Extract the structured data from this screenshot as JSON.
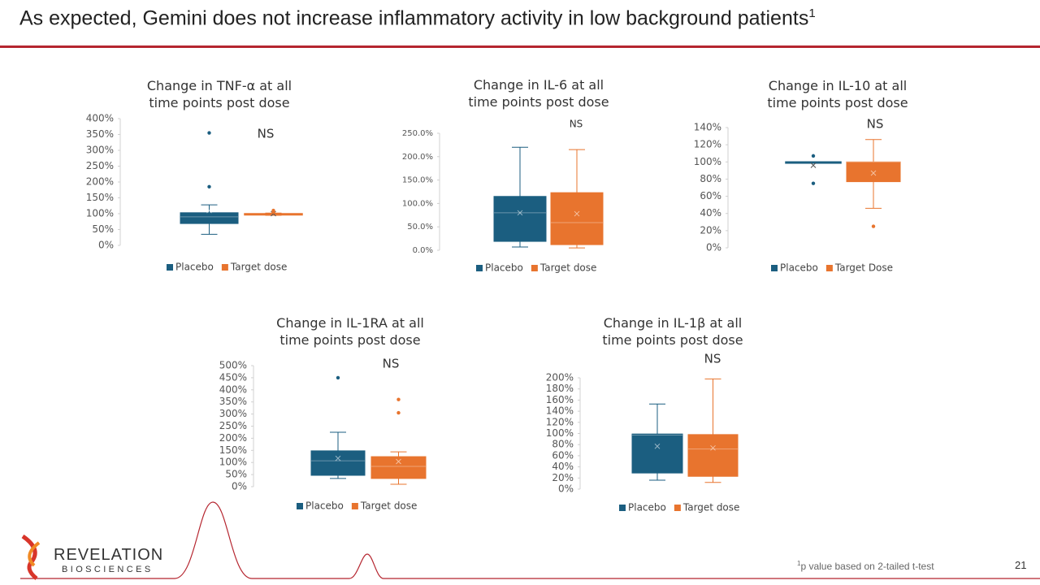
{
  "slide": {
    "title": "As expected, Gemini does not increase inflammatory activity in low background patients",
    "title_sup": "1",
    "footnote_sup": "1",
    "footnote": "p value based on 2-tailed t-test",
    "page_number": "21",
    "logo_top": "REVELATION",
    "logo_bottom": "BIOSCIENCES"
  },
  "chart_data": [
    {
      "type": "boxplot",
      "title": "Change in TNF-α at all time points post dose",
      "annotation": "NS",
      "ylim": [
        0,
        400
      ],
      "yticks": [
        {
          "value": 0,
          "label": "0%"
        },
        {
          "value": 50,
          "label": "50%"
        },
        {
          "value": 100,
          "label": "100%"
        },
        {
          "value": 150,
          "label": "150%"
        },
        {
          "value": 200,
          "label": "200%"
        },
        {
          "value": 250,
          "label": "250%"
        },
        {
          "value": 300,
          "label": "300%"
        },
        {
          "value": 350,
          "label": "350%"
        },
        {
          "value": 400,
          "label": "400%"
        }
      ],
      "series": [
        {
          "name": "Placebo",
          "color": "#1b5e80",
          "min": 35,
          "q1": 69,
          "median": 90,
          "q3": 103,
          "max": 128,
          "mean": 110,
          "outliers": [
            185,
            355
          ]
        },
        {
          "name": "Target dose",
          "color": "#e8742e",
          "min": 95,
          "q1": 97,
          "median": 98,
          "q3": 100,
          "max": 102,
          "mean": 100,
          "outliers": [
            110,
            105
          ]
        }
      ]
    },
    {
      "type": "boxplot",
      "title": "Change in IL-6 at all time points post dose",
      "annotation": "NS",
      "ylim": [
        0,
        250
      ],
      "yticks": [
        {
          "value": 0,
          "label": "0.0%"
        },
        {
          "value": 50,
          "label": "50.0%"
        },
        {
          "value": 100,
          "label": "100.0%"
        },
        {
          "value": 150,
          "label": "150.0%"
        },
        {
          "value": 200,
          "label": "200.0%"
        },
        {
          "value": 250,
          "label": "250.0%"
        }
      ],
      "series": [
        {
          "name": "Placebo",
          "color": "#1b5e80",
          "min": 7,
          "q1": 19,
          "median": 80,
          "q3": 115,
          "max": 220,
          "mean": 80,
          "outliers": []
        },
        {
          "name": "Target dose",
          "color": "#e8742e",
          "min": 5,
          "q1": 12,
          "median": 59,
          "q3": 123,
          "max": 215,
          "mean": 78,
          "outliers": []
        }
      ]
    },
    {
      "type": "boxplot",
      "title": "Change in IL-10 at all time points post dose",
      "annotation": "NS",
      "ylim": [
        0,
        140
      ],
      "yticks": [
        {
          "value": 0,
          "label": "0%"
        },
        {
          "value": 20,
          "label": "20%"
        },
        {
          "value": 40,
          "label": "40%"
        },
        {
          "value": 60,
          "label": "60%"
        },
        {
          "value": 80,
          "label": "80%"
        },
        {
          "value": 100,
          "label": "100%"
        },
        {
          "value": 120,
          "label": "120%"
        },
        {
          "value": 140,
          "label": "140%"
        }
      ],
      "series": [
        {
          "name": "Placebo",
          "color": "#1b5e80",
          "min": 99,
          "q1": 99,
          "median": 100,
          "q3": 100,
          "max": 100,
          "mean": 96,
          "outliers": [
            107,
            75
          ]
        },
        {
          "name": "Target Dose",
          "color": "#e8742e",
          "min": 46,
          "q1": 77,
          "median": 100,
          "q3": 100,
          "max": 126,
          "mean": 87,
          "outliers": [
            25
          ]
        }
      ]
    },
    {
      "type": "boxplot",
      "title": "Change in IL-1RA at all time points post dose",
      "annotation": "NS",
      "ylim": [
        0,
        500
      ],
      "yticks": [
        {
          "value": 0,
          "label": "0%"
        },
        {
          "value": 50,
          "label": "50%"
        },
        {
          "value": 100,
          "label": "100%"
        },
        {
          "value": 150,
          "label": "150%"
        },
        {
          "value": 200,
          "label": "200%"
        },
        {
          "value": 250,
          "label": "250%"
        },
        {
          "value": 300,
          "label": "300%"
        },
        {
          "value": 350,
          "label": "350%"
        },
        {
          "value": 400,
          "label": "400%"
        },
        {
          "value": 450,
          "label": "450%"
        },
        {
          "value": 500,
          "label": "500%"
        }
      ],
      "series": [
        {
          "name": "Placebo",
          "color": "#1b5e80",
          "min": 34,
          "q1": 47,
          "median": 107,
          "q3": 148,
          "max": 225,
          "mean": 117,
          "outliers": [
            450
          ]
        },
        {
          "name": "Target dose",
          "color": "#e8742e",
          "min": 10,
          "q1": 34,
          "median": 84,
          "q3": 124,
          "max": 144,
          "mean": 104,
          "outliers": [
            360,
            305
          ]
        }
      ]
    },
    {
      "type": "boxplot",
      "title": "Change in IL-1β at all time points post dose",
      "annotation": "NS",
      "ylim": [
        0,
        200
      ],
      "yticks": [
        {
          "value": 0,
          "label": "0%"
        },
        {
          "value": 20,
          "label": "20%"
        },
        {
          "value": 40,
          "label": "40%"
        },
        {
          "value": 60,
          "label": "60%"
        },
        {
          "value": 80,
          "label": "80%"
        },
        {
          "value": 100,
          "label": "100%"
        },
        {
          "value": 120,
          "label": "120%"
        },
        {
          "value": 140,
          "label": "140%"
        },
        {
          "value": 160,
          "label": "160%"
        },
        {
          "value": 180,
          "label": "180%"
        },
        {
          "value": 200,
          "label": "200%"
        }
      ],
      "series": [
        {
          "name": "Placebo",
          "color": "#1b5e80",
          "min": 16,
          "q1": 29,
          "median": 97,
          "q3": 99,
          "max": 153,
          "mean": 77,
          "outliers": []
        },
        {
          "name": "Target dose",
          "color": "#e8742e",
          "min": 12,
          "q1": 23,
          "median": 72,
          "q3": 98,
          "max": 198,
          "mean": 74,
          "outliers": []
        }
      ]
    }
  ]
}
